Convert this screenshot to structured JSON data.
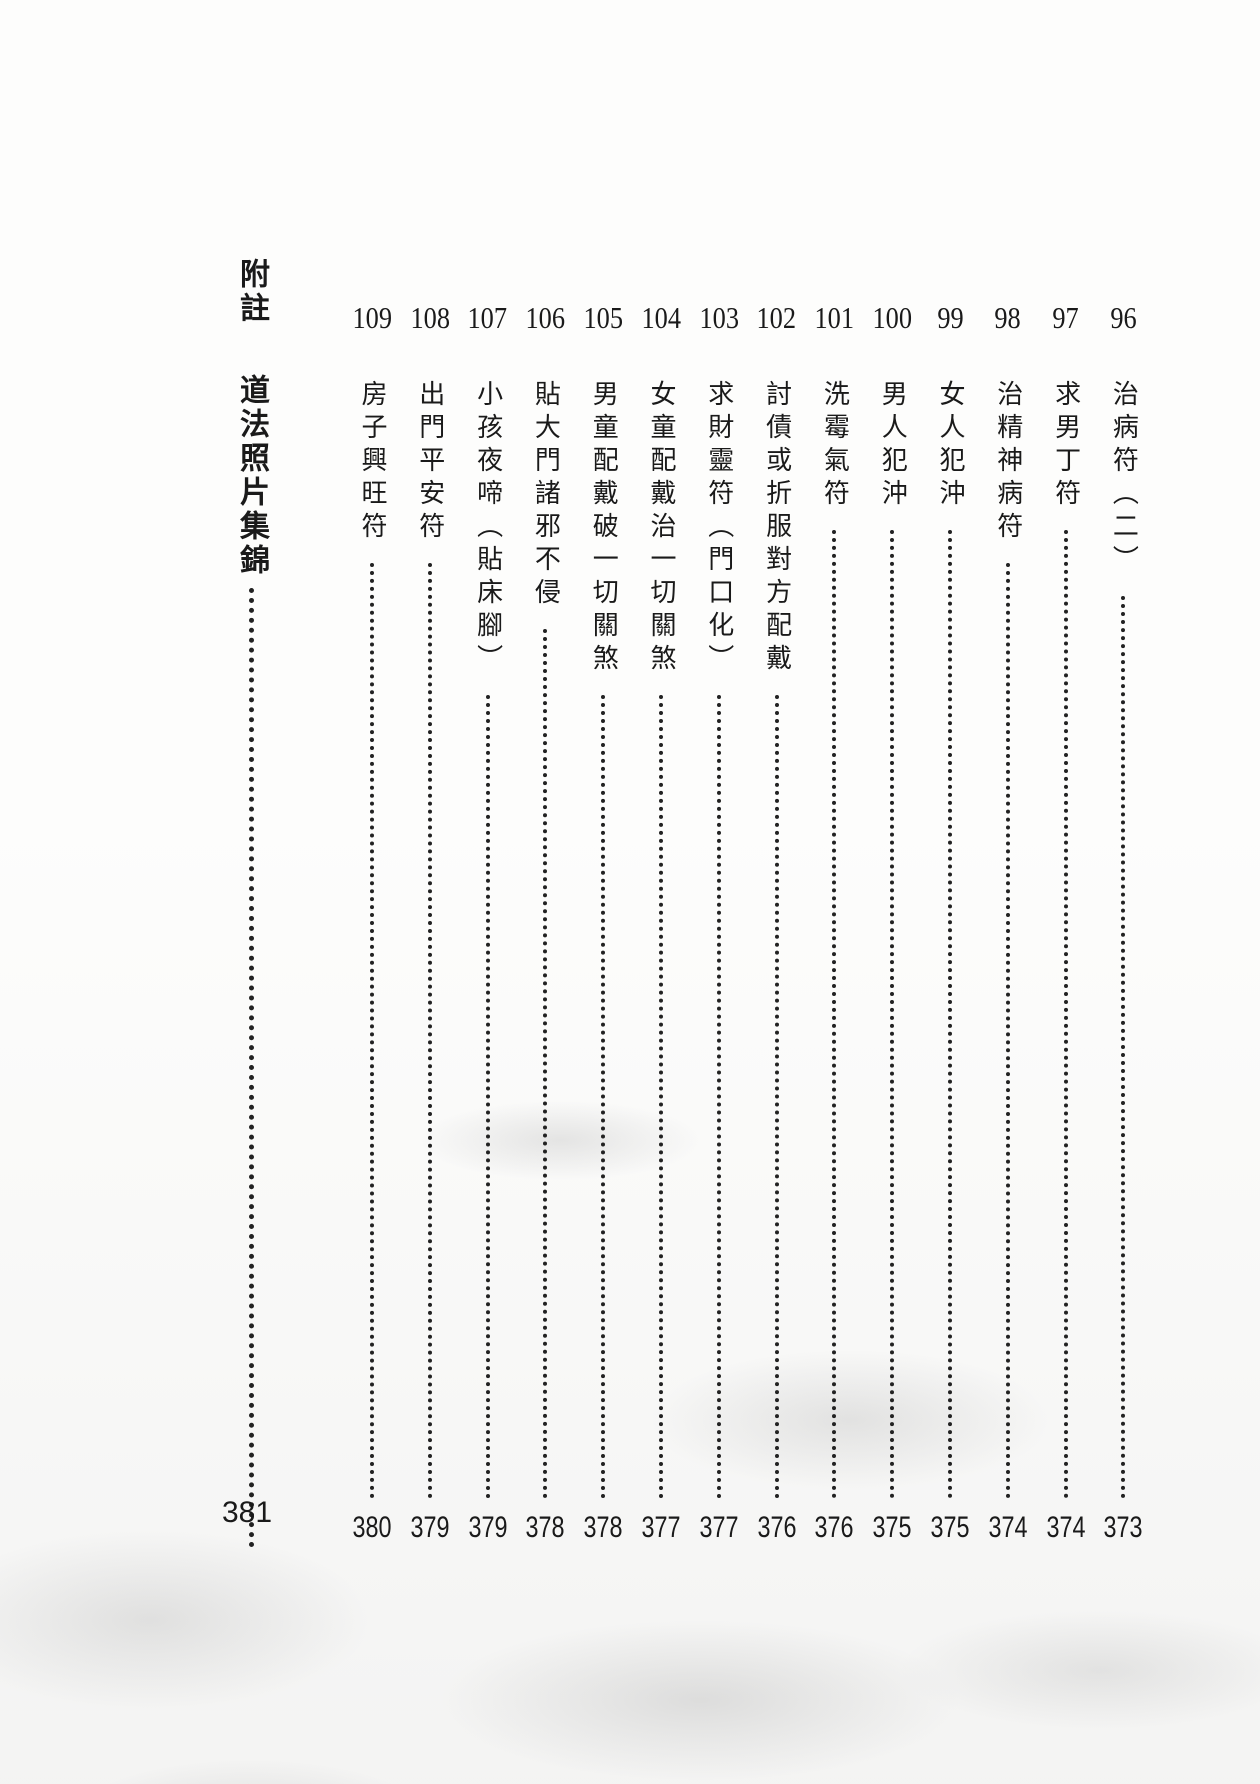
{
  "appendix": {
    "label": "附註",
    "title": "道法照片集錦",
    "page": "381"
  },
  "entries": [
    {
      "number": "109",
      "title": "房子興旺符",
      "page": "380"
    },
    {
      "number": "108",
      "title": "出門平安符",
      "page": "379"
    },
    {
      "number": "107",
      "title": "小孩夜啼（貼床腳）",
      "page": "379"
    },
    {
      "number": "106",
      "title": "貼大門諸邪不侵",
      "page": "378"
    },
    {
      "number": "105",
      "title": "男童配戴破一切關煞",
      "page": "378"
    },
    {
      "number": "104",
      "title": "女童配戴治一切關煞",
      "page": "377"
    },
    {
      "number": "103",
      "title": "求財靈符（門口化）",
      "page": "377"
    },
    {
      "number": "102",
      "title": "討債或折服對方配戴",
      "page": "376"
    },
    {
      "number": "101",
      "title": "洗霉氣符",
      "page": "376"
    },
    {
      "number": "100",
      "title": "男人犯沖",
      "page": "375"
    },
    {
      "number": "99",
      "title": "女人犯沖",
      "page": "375"
    },
    {
      "number": "98",
      "title": "治精神病符",
      "page": "374"
    },
    {
      "number": "97",
      "title": "求男丁符",
      "page": "374"
    },
    {
      "number": "96",
      "title": "治病符（二）",
      "page": "373"
    }
  ]
}
